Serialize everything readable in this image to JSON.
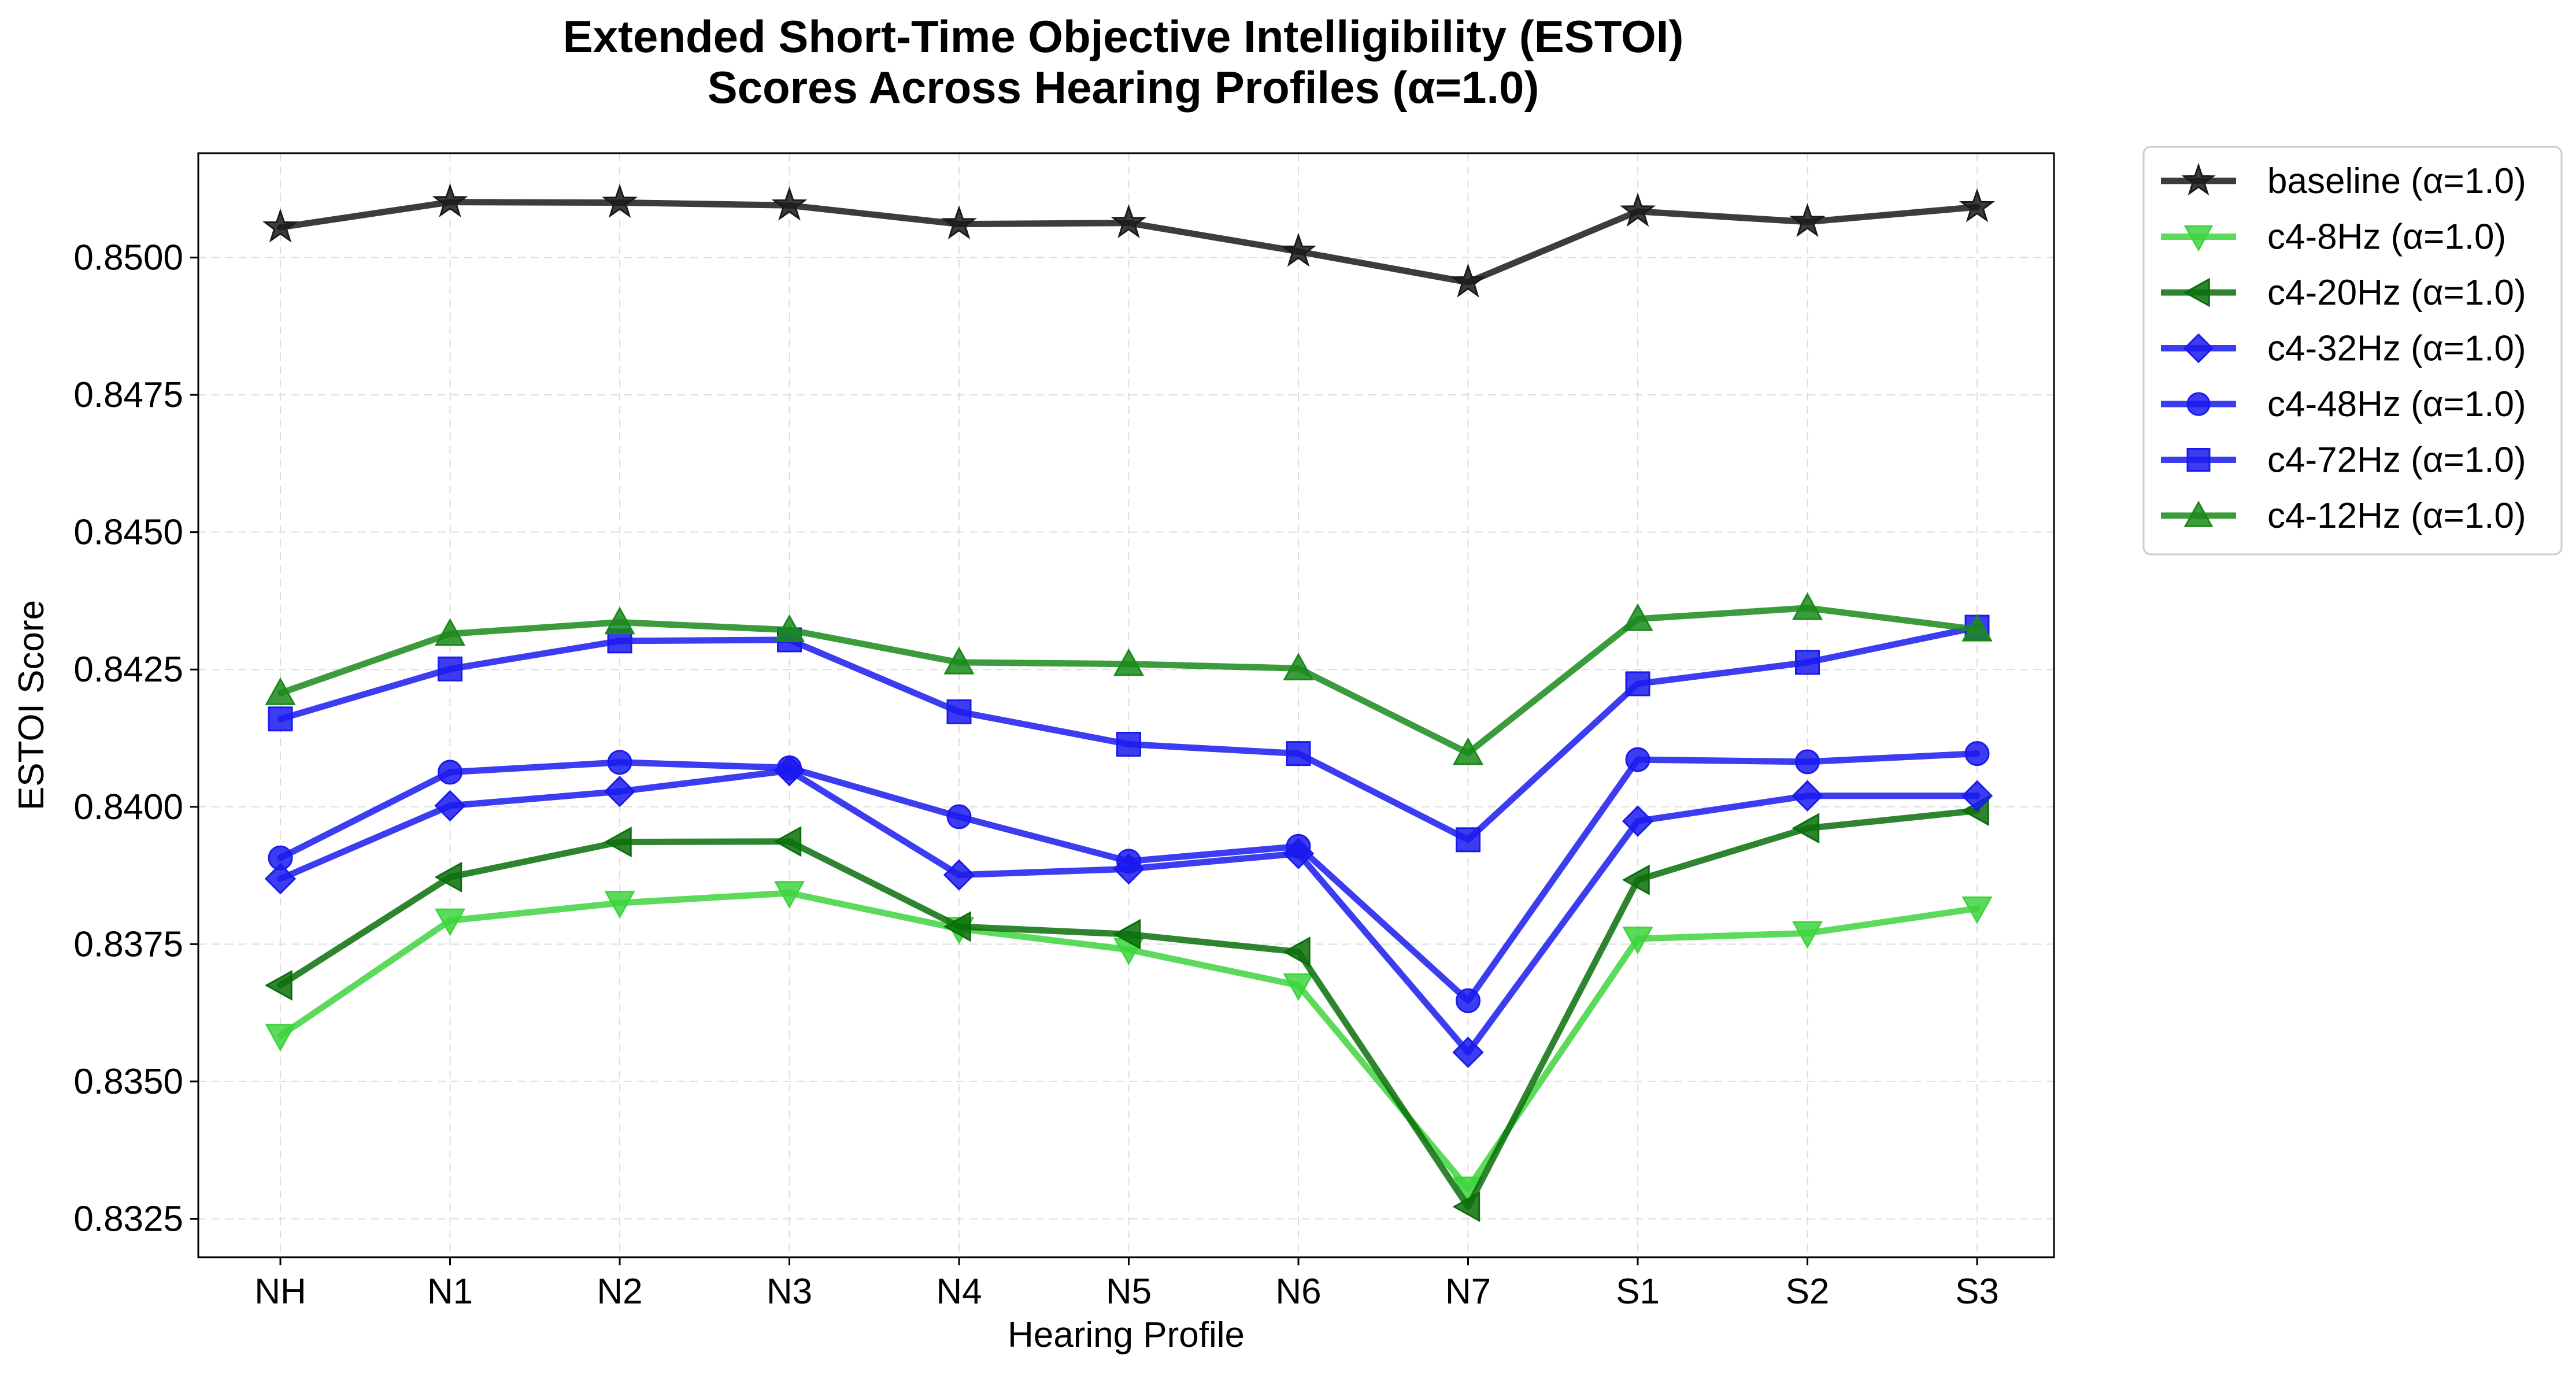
{
  "chart_data": {
    "type": "line",
    "title_lines": [
      "Extended Short-Time Objective Intelligibility (ESTOI)",
      "Scores Across Hearing Profiles (α=1.0)"
    ],
    "xlabel": "Hearing Profile",
    "ylabel": "ESTOI Score",
    "categories": [
      "NH",
      "N1",
      "N2",
      "N3",
      "N4",
      "N5",
      "N6",
      "N7",
      "S1",
      "S2",
      "S3"
    ],
    "ylim": [
      0.8318,
      0.8519
    ],
    "yticks": [
      "0.8325",
      "0.8350",
      "0.8375",
      "0.8400",
      "0.8425",
      "0.8450",
      "0.8475",
      "0.8500"
    ],
    "grid": true,
    "legend_position": "outside upper right",
    "series": [
      {
        "name": "baseline (α=1.0)",
        "color": "#1a1a1a",
        "marker": "star",
        "values": [
          0.85055,
          0.85101,
          0.851,
          0.85095,
          0.85061,
          0.85063,
          0.85011,
          0.84955,
          0.85084,
          0.85065,
          0.85092
        ]
      },
      {
        "name": "c4-8Hz (α=1.0)",
        "color": "#3ed43e",
        "marker": "triangle-down",
        "values": [
          0.83583,
          0.83793,
          0.83825,
          0.83843,
          0.83778,
          0.8374,
          0.83675,
          0.83305,
          0.8376,
          0.8377,
          0.83815
        ]
      },
      {
        "name": "c4-20Hz (α=1.0)",
        "color": "#0b6e0b",
        "marker": "triangle-left",
        "values": [
          0.83675,
          0.83872,
          0.83936,
          0.83937,
          0.83782,
          0.83768,
          0.83736,
          0.83272,
          0.83867,
          0.83961,
          0.83993
        ]
      },
      {
        "name": "c4-32Hz (α=1.0)",
        "color": "#1a1aee",
        "marker": "diamond",
        "values": [
          0.83869,
          0.84002,
          0.84028,
          0.84066,
          0.83876,
          0.83887,
          0.83915,
          0.83553,
          0.83974,
          0.8402,
          0.8402
        ]
      },
      {
        "name": "c4-48Hz (α=1.0)",
        "color": "#1a1aee",
        "marker": "circle",
        "values": [
          0.83907,
          0.84063,
          0.84081,
          0.84071,
          0.83982,
          0.83901,
          0.83928,
          0.83647,
          0.84086,
          0.84082,
          0.84097
        ]
      },
      {
        "name": "c4-72Hz (α=1.0)",
        "color": "#1a1aee",
        "marker": "square",
        "values": [
          0.8416,
          0.84251,
          0.84302,
          0.84304,
          0.84173,
          0.84114,
          0.84097,
          0.8394,
          0.84224,
          0.84263,
          0.84327
        ]
      },
      {
        "name": "c4-12Hz (α=1.0)",
        "color": "#1a891a",
        "marker": "triangle-up",
        "values": [
          0.84207,
          0.84315,
          0.84336,
          0.84322,
          0.84263,
          0.8426,
          0.84252,
          0.84098,
          0.84342,
          0.84362,
          0.84323
        ]
      }
    ]
  }
}
